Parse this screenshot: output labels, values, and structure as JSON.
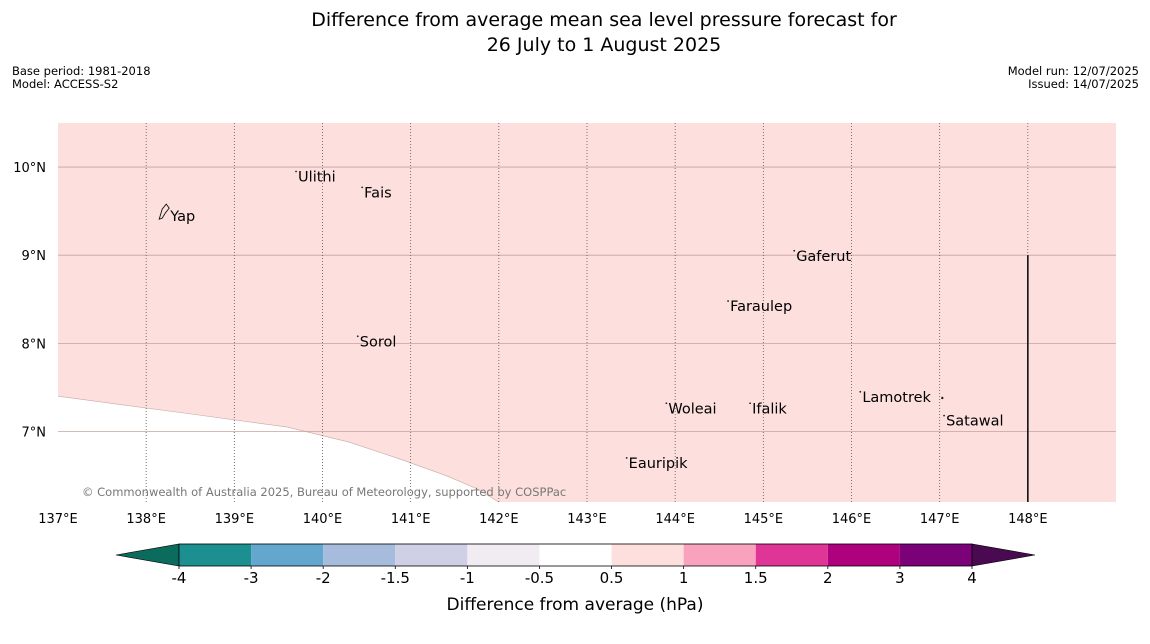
{
  "title": {
    "line1": "Difference from average mean sea level pressure forecast for",
    "line2": "26 July to 1 August 2025"
  },
  "meta_left": {
    "base_period": "Base period: 1981-2018",
    "model": "Model: ACCESS-S2"
  },
  "meta_right": {
    "model_run": "Model run: 12/07/2025",
    "issued": "Issued: 14/07/2025"
  },
  "map": {
    "lon_range": [
      137,
      149
    ],
    "lat_range": [
      6.2,
      10.5
    ],
    "grid": "dotted",
    "lat_labels": [
      {
        "value": 10,
        "label": "10°N"
      },
      {
        "value": 9,
        "label": "9°N"
      },
      {
        "value": 8,
        "label": "8°N"
      },
      {
        "value": 7,
        "label": "7°N"
      }
    ],
    "lon_labels": [
      {
        "value": 137,
        "label": "137°E"
      },
      {
        "value": 138,
        "label": "138°E"
      },
      {
        "value": 139,
        "label": "139°E"
      },
      {
        "value": 140,
        "label": "140°E"
      },
      {
        "value": 141,
        "label": "141°E"
      },
      {
        "value": 142,
        "label": "142°E"
      },
      {
        "value": 143,
        "label": "143°E"
      },
      {
        "value": 144,
        "label": "144°E"
      },
      {
        "value": 145,
        "label": "145°E"
      },
      {
        "value": 146,
        "label": "146°E"
      },
      {
        "value": 147,
        "label": "147°E"
      },
      {
        "value": 148,
        "label": "148°E"
      }
    ],
    "background_color": "#fde0de",
    "places": [
      {
        "name": "Yap",
        "lon": 138.25,
        "lat": 9.5
      },
      {
        "name": "Ulithi",
        "lon": 139.7,
        "lat": 9.95
      },
      {
        "name": "Fais",
        "lon": 140.45,
        "lat": 9.77
      },
      {
        "name": "Gaferut",
        "lon": 145.35,
        "lat": 9.05
      },
      {
        "name": "Faraulep",
        "lon": 144.6,
        "lat": 8.48
      },
      {
        "name": "Sorol",
        "lon": 140.4,
        "lat": 8.08
      },
      {
        "name": "Woleai",
        "lon": 143.9,
        "lat": 7.32
      },
      {
        "name": "Ifalik",
        "lon": 144.85,
        "lat": 7.32
      },
      {
        "name": "Lamotrek",
        "lon": 146.1,
        "lat": 7.45
      },
      {
        "name": "Satawal",
        "lon": 147.05,
        "lat": 7.18
      },
      {
        "name": "Eauripik",
        "lon": 143.45,
        "lat": 6.7
      }
    ],
    "boundary_line": {
      "lon": 148.0,
      "lat_from": 6.2,
      "lat_to": 9.0
    },
    "copyright": "© Commonwealth of Australia 2025, Bureau of Meteorology, supported by COSPPac"
  },
  "colorbar": {
    "label": "Difference from average (hPa)",
    "ticks": [
      "-4",
      "-3",
      "-2",
      "-1.5",
      "-1",
      "-0.5",
      "0.5",
      "1",
      "1.5",
      "2",
      "3",
      "4"
    ],
    "under_color": "#0b6b5c",
    "over_color": "#4a0a52",
    "colors": [
      "#1c9090",
      "#63a7cf",
      "#a7bcdc",
      "#cfd0e6",
      "#f1ebf2",
      "#ffffff",
      "#fde0de",
      "#f9a2be",
      "#df3597",
      "#ae017e",
      "#7a0177"
    ]
  }
}
